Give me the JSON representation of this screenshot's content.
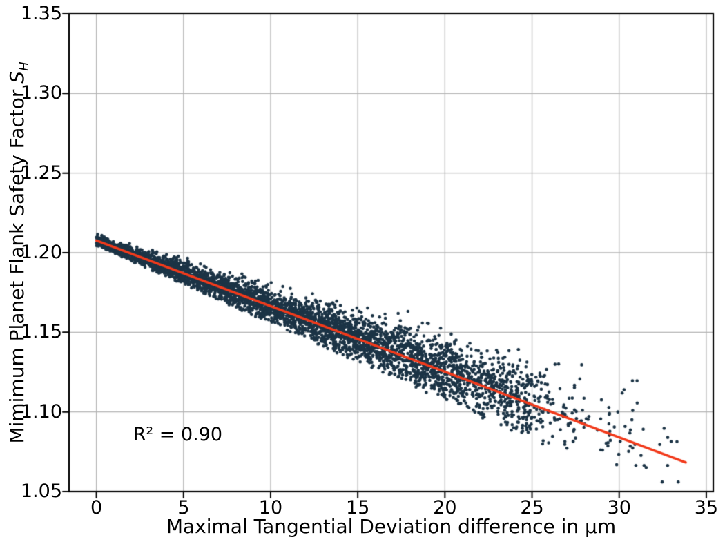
{
  "figure": {
    "background": "#ffffff"
  },
  "chart_data": {
    "type": "scatter",
    "title": "",
    "xlabel": "Maximal Tangential Deviation difference in μm",
    "ylabel": {
      "prefix": "Mimimum Planet Flank Safety Factor ",
      "math_symbol": "S",
      "subscript": "H"
    },
    "annotation": {
      "text": "R² = 0.90",
      "x": 2.1,
      "y": 1.0855
    },
    "r_squared": 0.9,
    "xlim": [
      -1.57,
      35.4
    ],
    "ylim": [
      1.05,
      1.35
    ],
    "x_ticks": [
      0,
      5,
      10,
      15,
      20,
      25,
      30,
      35
    ],
    "x_tick_labels": [
      "0",
      "5",
      "10",
      "15",
      "20",
      "25",
      "30",
      "35"
    ],
    "y_ticks": [
      1.05,
      1.1,
      1.15,
      1.2,
      1.25,
      1.3,
      1.35
    ],
    "y_tick_labels": [
      "1.05",
      "1.10",
      "1.15",
      "1.20",
      "1.25",
      "1.30",
      "1.35"
    ],
    "grid": true,
    "legend": "none",
    "colors": {
      "points": "#1c3446",
      "line": "#f23a1b",
      "grid": "#b4b4b4",
      "spine": "#000000",
      "text": "#000000"
    },
    "regression_line": {
      "x1": 0,
      "y1": 1.2076,
      "x2": 33.82,
      "y2": 1.0683,
      "slope_per_um": -0.00412,
      "intercept": 1.2076
    },
    "scatter_model": {
      "seed": 1337,
      "n_points": 4300,
      "point_radius": 2.3,
      "x_segments": [
        {
          "from": 0,
          "to": 4,
          "weight": 0.16
        },
        {
          "from": 4,
          "to": 10,
          "weight": 0.26
        },
        {
          "from": 10,
          "to": 16,
          "weight": 0.24
        },
        {
          "from": 16,
          "to": 21,
          "weight": 0.189
        },
        {
          "from": 21,
          "to": 25,
          "weight": 0.114
        },
        {
          "from": 25,
          "to": 28,
          "weight": 0.025
        },
        {
          "from": 28,
          "to": 31,
          "weight": 0.008
        },
        {
          "from": 31,
          "to": 33.8,
          "weight": 0.004
        }
      ],
      "sigma_base": 0.0017,
      "sigma_per_um": 0.0004,
      "clip_sigma": [
        -1.9,
        2.8
      ],
      "upper_skew": {
        "min_x": 10,
        "probability": 0.18,
        "scale_per_um": 0.0011
      },
      "y_clamp": [
        1.056,
        1.212
      ]
    }
  }
}
